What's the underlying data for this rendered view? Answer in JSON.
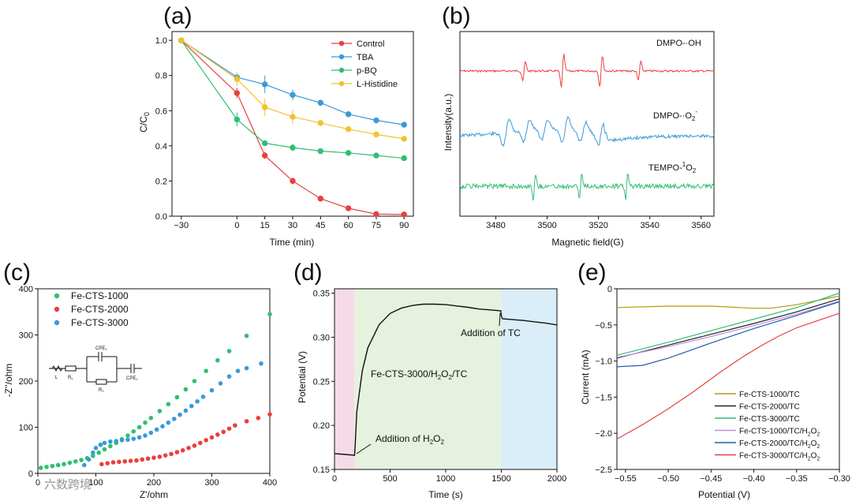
{
  "figure": {
    "watermark": "六数跨境"
  },
  "chart_data": [
    {
      "panel_label": "(a)",
      "type": "line",
      "xlabel": "Time (min)",
      "ylabel": "C/C",
      "ylabel_sub": "0",
      "xlim": [
        -35,
        95
      ],
      "ylim": [
        0,
        1.05
      ],
      "xticks": [
        -30,
        0,
        15,
        30,
        45,
        60,
        75,
        90
      ],
      "yticks": [
        0.0,
        0.2,
        0.4,
        0.6,
        0.8,
        1.0
      ],
      "legend_position": "top-right",
      "x": [
        -30,
        0,
        15,
        30,
        45,
        60,
        75,
        90
      ],
      "series": [
        {
          "name": "Control",
          "color": "#e8403f",
          "values": [
            1.0,
            0.7,
            0.345,
            0.2,
            0.1,
            0.045,
            0.012,
            0.01
          ]
        },
        {
          "name": "TBA",
          "color": "#3a9ad9",
          "values": [
            1.0,
            0.79,
            0.75,
            0.69,
            0.645,
            0.58,
            0.545,
            0.52
          ]
        },
        {
          "name": "p-BQ",
          "color": "#2fbf71",
          "values": [
            1.0,
            0.55,
            0.415,
            0.39,
            0.37,
            0.36,
            0.345,
            0.33
          ]
        },
        {
          "name": "L-Histidine",
          "color": "#f2c12e",
          "values": [
            1.0,
            0.78,
            0.62,
            0.565,
            0.53,
            0.495,
            0.465,
            0.44
          ]
        }
      ]
    },
    {
      "panel_label": "(b)",
      "type": "line",
      "xlabel": "Magnetic field(G)",
      "ylabel": "Intensity(a.u.)",
      "xlim": [
        3466,
        3565
      ],
      "xticks": [
        3480,
        3500,
        3520,
        3540,
        3560
      ],
      "series": [
        {
          "name": "DMPO-·OH",
          "label_main": "DMPO-·OH",
          "color": "#e8403f"
        },
        {
          "name": "DMPO-·O2-",
          "label_main": "DMPO-·O",
          "label_sub": "2",
          "label_sup": "-",
          "color": "#3a9ad9"
        },
        {
          "name": "TEMPO-1O2",
          "label_main": "TEMPO-",
          "label_sup": "1",
          "label_tail": "O",
          "label_sub": "2",
          "color": "#2fbf71"
        }
      ]
    },
    {
      "panel_label": "(c)",
      "type": "scatter",
      "xlabel": "Z'/ohm",
      "ylabel": "-Z''/ohm",
      "xlim": [
        0,
        400
      ],
      "ylim": [
        0,
        400
      ],
      "xticks": [
        0,
        100,
        200,
        300,
        400
      ],
      "yticks": [
        0,
        100,
        200,
        300,
        400
      ],
      "legend_position": "top-left",
      "circuit_labels": {
        "cpe1": "CPE",
        "cpe1_sub": "1",
        "cpe2": "CPE",
        "cpe2_sub": "2",
        "l": "L",
        "rs": "R",
        "rs_sub": "s",
        "r1": "R",
        "r1_sub": "1"
      },
      "series": [
        {
          "name": "Fe-CTS-1000",
          "color": "#2fbf71",
          "points": [
            [
              5,
              12
            ],
            [
              15,
              14
            ],
            [
              25,
              16
            ],
            [
              35,
              18
            ],
            [
              45,
              20
            ],
            [
              55,
              23
            ],
            [
              65,
              26
            ],
            [
              75,
              29
            ],
            [
              85,
              33
            ],
            [
              95,
              38
            ],
            [
              105,
              45
            ],
            [
              115,
              52
            ],
            [
              125,
              59
            ],
            [
              135,
              66
            ],
            [
              145,
              74
            ],
            [
              155,
              82
            ],
            [
              165,
              91
            ],
            [
              175,
              100
            ],
            [
              185,
              110
            ],
            [
              195,
              120
            ],
            [
              210,
              135
            ],
            [
              225,
              150
            ],
            [
              240,
              165
            ],
            [
              255,
              182
            ],
            [
              270,
              200
            ],
            [
              290,
              222
            ],
            [
              310,
              245
            ],
            [
              330,
              265
            ],
            [
              360,
              298
            ],
            [
              400,
              345
            ]
          ]
        },
        {
          "name": "Fe-CTS-2000",
          "color": "#e8403f",
          "points": [
            [
              110,
              20
            ],
            [
              120,
              22
            ],
            [
              130,
              24
            ],
            [
              140,
              25
            ],
            [
              150,
              26
            ],
            [
              160,
              27
            ],
            [
              170,
              28
            ],
            [
              180,
              30
            ],
            [
              190,
              32
            ],
            [
              200,
              34
            ],
            [
              210,
              36
            ],
            [
              220,
              39
            ],
            [
              230,
              42
            ],
            [
              240,
              46
            ],
            [
              250,
              50
            ],
            [
              260,
              55
            ],
            [
              270,
              60
            ],
            [
              280,
              66
            ],
            [
              290,
              72
            ],
            [
              300,
              78
            ],
            [
              310,
              84
            ],
            [
              320,
              90
            ],
            [
              330,
              97
            ],
            [
              340,
              104
            ],
            [
              360,
              113
            ],
            [
              380,
              120
            ],
            [
              400,
              128
            ]
          ]
        },
        {
          "name": "Fe-CTS-3000",
          "color": "#3a9ad9",
          "points": [
            [
              80,
              18
            ],
            [
              88,
              30
            ],
            [
              95,
              45
            ],
            [
              100,
              55
            ],
            [
              108,
              62
            ],
            [
              115,
              66
            ],
            [
              125,
              69
            ],
            [
              135,
              70
            ],
            [
              145,
              72
            ],
            [
              155,
              73
            ],
            [
              165,
              75
            ],
            [
              175,
              78
            ],
            [
              185,
              82
            ],
            [
              195,
              88
            ],
            [
              205,
              95
            ],
            [
              215,
              102
            ],
            [
              225,
              110
            ],
            [
              235,
              118
            ],
            [
              245,
              127
            ],
            [
              255,
              136
            ],
            [
              265,
              146
            ],
            [
              275,
              156
            ],
            [
              285,
              166
            ],
            [
              300,
              180
            ],
            [
              315,
              195
            ],
            [
              330,
              210
            ],
            [
              345,
              222
            ],
            [
              360,
              228
            ],
            [
              385,
              238
            ]
          ]
        }
      ]
    },
    {
      "panel_label": "(d)",
      "type": "line",
      "xlabel": "Time (s)",
      "ylabel": "Potential (V)",
      "xlim": [
        0,
        2000
      ],
      "ylim": [
        0.15,
        0.355
      ],
      "xticks": [
        0,
        500,
        1000,
        1500,
        2000
      ],
      "yticks": [
        0.15,
        0.2,
        0.25,
        0.3,
        0.35
      ],
      "annotations": {
        "h2o2_main": "Addition of H",
        "h2o2_sub": "2",
        "h2o2_mid": "O",
        "h2o2_sub2": "2",
        "tc": "Addition of TC",
        "system_main": "Fe-CTS-3000/H",
        "system_sub": "2",
        "system_mid": "O",
        "system_sub2": "2",
        "system_tail": "/TC"
      },
      "phase_bands": [
        {
          "from": 0,
          "to": 180,
          "color": "#f6dbe6"
        },
        {
          "from": 180,
          "to": 1500,
          "color": "#e6f1de"
        },
        {
          "from": 1500,
          "to": 2000,
          "color": "#d9eef8"
        }
      ],
      "series": [
        {
          "name": "Fe-CTS-3000/H2O2/TC",
          "color": "#111111",
          "x": [
            0,
            100,
            180,
            185,
            200,
            250,
            300,
            400,
            500,
            600,
            700,
            800,
            900,
            1000,
            1100,
            1200,
            1300,
            1400,
            1495,
            1500,
            1510,
            1600,
            1700,
            1800,
            1900,
            2000
          ],
          "values": [
            0.168,
            0.167,
            0.166,
            0.175,
            0.215,
            0.262,
            0.288,
            0.314,
            0.327,
            0.333,
            0.336,
            0.3375,
            0.3375,
            0.337,
            0.3355,
            0.334,
            0.332,
            0.331,
            0.33,
            0.324,
            0.321,
            0.32,
            0.319,
            0.3175,
            0.316,
            0.314
          ]
        }
      ]
    },
    {
      "panel_label": "(e)",
      "type": "line",
      "xlabel": "Potential (V)",
      "ylabel": "Current (mA)",
      "xlim": [
        -0.56,
        -0.3
      ],
      "ylim": [
        -2.5,
        0
      ],
      "xticks": [
        -0.55,
        -0.5,
        -0.45,
        -0.4,
        -0.35,
        -0.3
      ],
      "yticks": [
        -2.5,
        -2.0,
        -1.5,
        -1.0,
        -0.5,
        0
      ],
      "legend_position": "bottom-right",
      "series": [
        {
          "name": "Fe-CTS-1000/TC",
          "label_main": "Fe-CTS-1000/TC",
          "color": "#b8960c",
          "x": [
            -0.56,
            -0.5,
            -0.45,
            -0.4,
            -0.38,
            -0.35,
            -0.3
          ],
          "values": [
            -0.26,
            -0.24,
            -0.24,
            -0.27,
            -0.27,
            -0.22,
            -0.1
          ]
        },
        {
          "name": "Fe-CTS-2000/TC",
          "label_main": "Fe-CTS-2000/TC",
          "color": "#222222",
          "x": [
            -0.56,
            -0.5,
            -0.45,
            -0.4,
            -0.35,
            -0.3
          ],
          "values": [
            -0.96,
            -0.78,
            -0.63,
            -0.48,
            -0.32,
            -0.14
          ]
        },
        {
          "name": "Fe-CTS-3000/TC",
          "label_main": "Fe-CTS-3000/TC",
          "color": "#2fbf71",
          "x": [
            -0.56,
            -0.5,
            -0.45,
            -0.4,
            -0.35,
            -0.3
          ],
          "values": [
            -0.92,
            -0.74,
            -0.58,
            -0.42,
            -0.26,
            -0.06
          ]
        },
        {
          "name": "Fe-CTS-1000/TC/H2O2",
          "label_main": "Fe-CTS-1000/TC/H",
          "label_sub": "2",
          "label_mid": "O",
          "label_sub2": "2",
          "color": "#c58be0",
          "x": [
            -0.56,
            -0.5,
            -0.45,
            -0.4,
            -0.35,
            -0.3
          ],
          "values": [
            -0.95,
            -0.8,
            -0.66,
            -0.51,
            -0.35,
            -0.17
          ]
        },
        {
          "name": "Fe-CTS-2000/TC/H2O2",
          "label_main": "Fe-CTS-2000/TC/H",
          "label_sub": "2",
          "label_mid": "O",
          "label_sub2": "2",
          "color": "#1f5fa8",
          "x": [
            -0.56,
            -0.53,
            -0.5,
            -0.45,
            -0.4,
            -0.35,
            -0.3
          ],
          "values": [
            -1.08,
            -1.06,
            -0.96,
            -0.75,
            -0.55,
            -0.37,
            -0.18
          ]
        },
        {
          "name": "Fe-CTS-3000/TC/H2O2",
          "label_main": "Fe-CTS-3000/TC/H",
          "label_sub": "2",
          "label_mid": "O",
          "label_sub2": "2",
          "color": "#e8403f",
          "x": [
            -0.56,
            -0.53,
            -0.5,
            -0.47,
            -0.44,
            -0.41,
            -0.39,
            -0.37,
            -0.35,
            -0.33,
            -0.3
          ],
          "values": [
            -2.08,
            -1.88,
            -1.66,
            -1.42,
            -1.16,
            -0.92,
            -0.78,
            -0.65,
            -0.54,
            -0.46,
            -0.34
          ]
        }
      ]
    }
  ]
}
